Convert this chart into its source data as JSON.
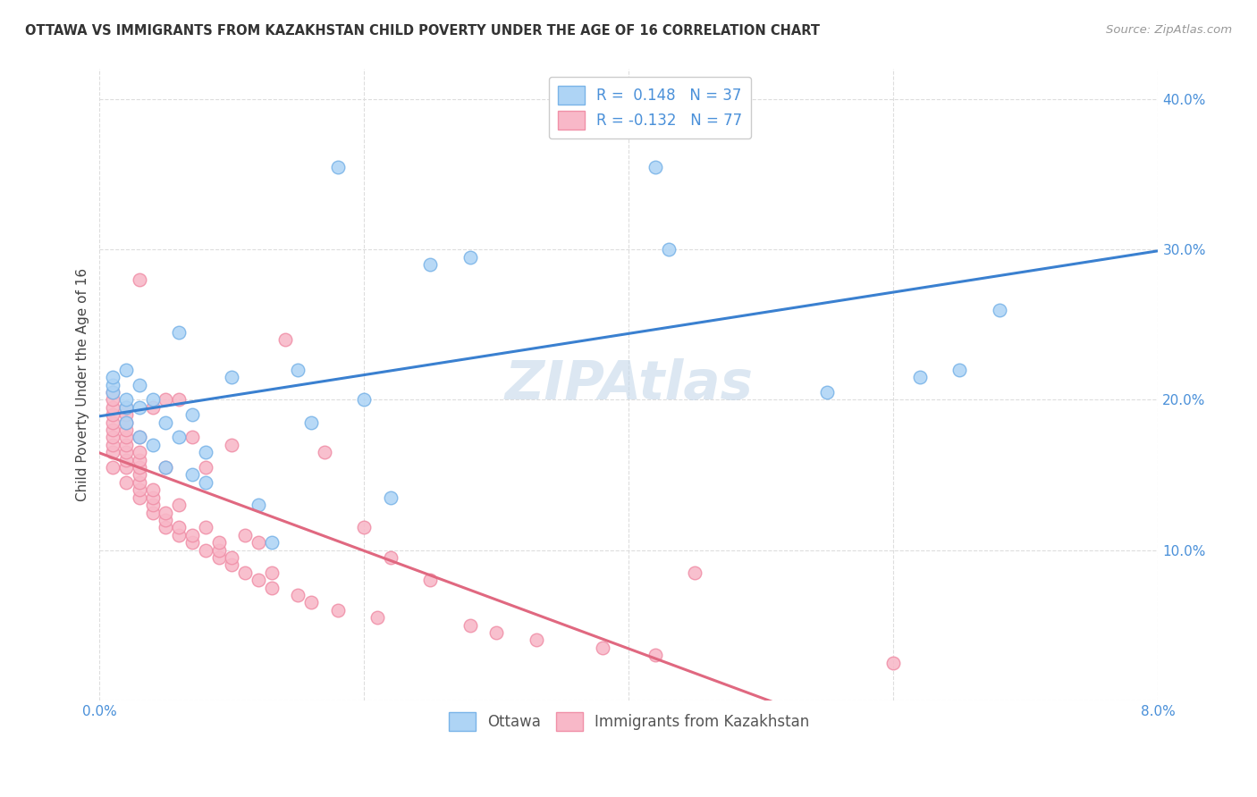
{
  "title": "OTTAWA VS IMMIGRANTS FROM KAZAKHSTAN CHILD POVERTY UNDER THE AGE OF 16 CORRELATION CHART",
  "source": "Source: ZipAtlas.com",
  "ylabel": "Child Poverty Under the Age of 16",
  "xmin": 0.0,
  "xmax": 0.08,
  "ymin": 0.0,
  "ymax": 0.42,
  "yticks": [
    0.0,
    0.1,
    0.2,
    0.3,
    0.4
  ],
  "xticks": [
    0.0,
    0.02,
    0.04,
    0.06,
    0.08
  ],
  "r_ottawa": 0.148,
  "n_ottawa": 37,
  "r_kaz": -0.132,
  "n_kaz": 77,
  "blue_scatter_face": "#aed4f5",
  "blue_scatter_edge": "#7ab4e8",
  "pink_scatter_face": "#f8b8c8",
  "pink_scatter_edge": "#f090a8",
  "blue_line_color": "#3a80d0",
  "pink_line_color": "#e06880",
  "bg_color": "#ffffff",
  "grid_color": "#dddddd",
  "watermark_color": "#c5d8ea",
  "tick_color": "#4a90d9",
  "ottawa_x": [
    0.001,
    0.001,
    0.001,
    0.002,
    0.002,
    0.002,
    0.002,
    0.003,
    0.003,
    0.003,
    0.004,
    0.004,
    0.005,
    0.005,
    0.006,
    0.006,
    0.007,
    0.007,
    0.008,
    0.008,
    0.01,
    0.012,
    0.013,
    0.015,
    0.016,
    0.018,
    0.02,
    0.022,
    0.025,
    0.028,
    0.035,
    0.042,
    0.043,
    0.055,
    0.062,
    0.065,
    0.068
  ],
  "ottawa_y": [
    0.205,
    0.21,
    0.215,
    0.185,
    0.195,
    0.2,
    0.22,
    0.175,
    0.195,
    0.21,
    0.17,
    0.2,
    0.155,
    0.185,
    0.175,
    0.245,
    0.15,
    0.19,
    0.145,
    0.165,
    0.215,
    0.13,
    0.105,
    0.22,
    0.185,
    0.355,
    0.2,
    0.135,
    0.29,
    0.295,
    0.385,
    0.355,
    0.3,
    0.205,
    0.215,
    0.22,
    0.26
  ],
  "kaz_x": [
    0.001,
    0.001,
    0.001,
    0.001,
    0.001,
    0.001,
    0.001,
    0.001,
    0.001,
    0.001,
    0.002,
    0.002,
    0.002,
    0.002,
    0.002,
    0.002,
    0.002,
    0.002,
    0.002,
    0.002,
    0.003,
    0.003,
    0.003,
    0.003,
    0.003,
    0.003,
    0.003,
    0.003,
    0.003,
    0.004,
    0.004,
    0.004,
    0.004,
    0.004,
    0.005,
    0.005,
    0.005,
    0.005,
    0.005,
    0.006,
    0.006,
    0.006,
    0.006,
    0.007,
    0.007,
    0.007,
    0.008,
    0.008,
    0.008,
    0.009,
    0.009,
    0.009,
    0.01,
    0.01,
    0.01,
    0.011,
    0.011,
    0.012,
    0.012,
    0.013,
    0.013,
    0.014,
    0.015,
    0.016,
    0.017,
    0.018,
    0.02,
    0.021,
    0.022,
    0.025,
    0.028,
    0.03,
    0.033,
    0.038,
    0.042,
    0.045,
    0.06
  ],
  "kaz_y": [
    0.155,
    0.165,
    0.17,
    0.175,
    0.18,
    0.185,
    0.19,
    0.195,
    0.2,
    0.205,
    0.145,
    0.155,
    0.16,
    0.165,
    0.17,
    0.175,
    0.18,
    0.185,
    0.19,
    0.195,
    0.135,
    0.14,
    0.145,
    0.15,
    0.155,
    0.16,
    0.165,
    0.175,
    0.28,
    0.125,
    0.13,
    0.135,
    0.14,
    0.195,
    0.115,
    0.12,
    0.125,
    0.155,
    0.2,
    0.11,
    0.115,
    0.13,
    0.2,
    0.105,
    0.11,
    0.175,
    0.1,
    0.115,
    0.155,
    0.095,
    0.1,
    0.105,
    0.09,
    0.095,
    0.17,
    0.085,
    0.11,
    0.08,
    0.105,
    0.075,
    0.085,
    0.24,
    0.07,
    0.065,
    0.165,
    0.06,
    0.115,
    0.055,
    0.095,
    0.08,
    0.05,
    0.045,
    0.04,
    0.035,
    0.03,
    0.085,
    0.025
  ]
}
